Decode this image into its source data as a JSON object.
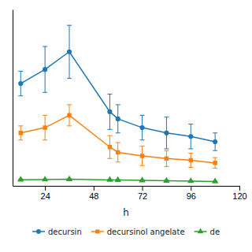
{
  "chart_data": {
    "type": "line",
    "x_label": "h",
    "x": [
      12,
      24,
      36,
      56,
      60,
      72,
      84,
      96,
      108
    ],
    "series": [
      {
        "name": "decursin",
        "marker": "circle",
        "values": [
          0.58,
          0.66,
          0.76,
          0.42,
          0.38,
          0.33,
          0.3,
          0.28,
          0.25
        ],
        "yerr": [
          0.07,
          0.13,
          0.15,
          0.1,
          0.08,
          0.07,
          0.09,
          0.07,
          0.05
        ]
      },
      {
        "name": "decursinol angelate",
        "marker": "square",
        "values": [
          0.3,
          0.33,
          0.4,
          0.22,
          0.19,
          0.17,
          0.155,
          0.145,
          0.13
        ],
        "yerr": [
          0.04,
          0.07,
          0.06,
          0.065,
          0.055,
          0.055,
          0.045,
          0.04,
          0.03
        ]
      },
      {
        "name": "de",
        "marker": "triangle",
        "values": [
          0.035,
          0.036,
          0.038,
          0.034,
          0.033,
          0.031,
          0.029,
          0.027,
          0.025
        ],
        "yerr": [
          0.002,
          0.002,
          0.002,
          0.002,
          0.002,
          0.002,
          0.002,
          0.002,
          0.002
        ]
      }
    ],
    "xlim": [
      8,
      120
    ],
    "xticks": [
      24,
      48,
      72,
      96,
      120
    ],
    "ylim": [
      0,
      1.0
    ],
    "tick_labels": "x",
    "grid": false,
    "legend": "bottom"
  }
}
